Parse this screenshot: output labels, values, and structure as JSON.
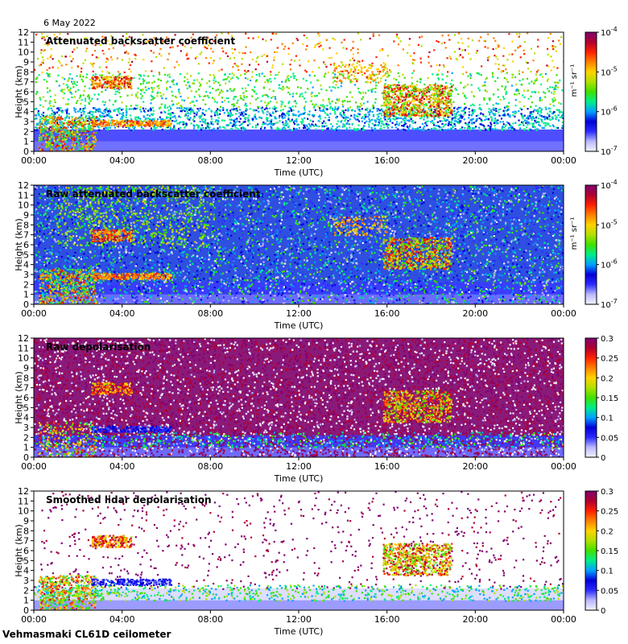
{
  "header": {
    "date": "6 May 2022"
  },
  "footer": {
    "site": "Vehmasmaki CL61D ceilometer"
  },
  "colors": {
    "colormap": [
      "#f2f2ff",
      "#b9b9ff",
      "#2b2bff",
      "#0000d9",
      "#00a0ff",
      "#00ee88",
      "#40e000",
      "#b0e000",
      "#ffd200",
      "#ff8000",
      "#ff2000",
      "#b00030",
      "#800070"
    ]
  },
  "chart_data": [
    {
      "type": "heatmap",
      "title": "Attenuated backscatter coefficient",
      "xlabel": "Time (UTC)",
      "ylabel": "Height (km)",
      "xticks": [
        "00:00",
        "04:00",
        "08:00",
        "12:00",
        "16:00",
        "20:00",
        "00:00"
      ],
      "yticks": [
        "0",
        "1",
        "2",
        "3",
        "4",
        "5",
        "6",
        "7",
        "8",
        "9",
        "10",
        "11",
        "12"
      ],
      "ylim": [
        0,
        12
      ],
      "colorbar": {
        "scale": "log",
        "ticks": [
          "10^-4",
          "10^-5",
          "10^-6",
          "10^-7"
        ],
        "unit": "m^-1 sr^-1"
      }
    },
    {
      "type": "heatmap",
      "title": "Raw attenuated backscatter coefficient",
      "xlabel": "Time (UTC)",
      "ylabel": "Height (km)",
      "xticks": [
        "00:00",
        "04:00",
        "08:00",
        "12:00",
        "16:00",
        "20:00",
        "00:00"
      ],
      "yticks": [
        "0",
        "1",
        "2",
        "3",
        "4",
        "5",
        "6",
        "7",
        "8",
        "9",
        "10",
        "11",
        "12"
      ],
      "ylim": [
        0,
        12
      ],
      "colorbar": {
        "scale": "log",
        "ticks": [
          "10^-4",
          "10^-5",
          "10^-6",
          "10^-7"
        ],
        "unit": "m^-1 sr^-1"
      }
    },
    {
      "type": "heatmap",
      "title": "Raw depolarisation",
      "xlabel": "Time (UTC)",
      "ylabel": "Height (km)",
      "xticks": [
        "00:00",
        "04:00",
        "08:00",
        "12:00",
        "16:00",
        "20:00",
        "00:00"
      ],
      "yticks": [
        "0",
        "1",
        "2",
        "3",
        "4",
        "5",
        "6",
        "7",
        "8",
        "9",
        "10",
        "11",
        "12"
      ],
      "ylim": [
        0,
        12
      ],
      "colorbar": {
        "scale": "linear",
        "ticks": [
          "0.3",
          "0.25",
          "0.2",
          "0.15",
          "0.1",
          "0.05",
          "0"
        ],
        "unit": ""
      }
    },
    {
      "type": "heatmap",
      "title": "Smoothed lidar depolarisation",
      "xlabel": "Time (UTC)",
      "ylabel": "Height (km)",
      "xticks": [
        "00:00",
        "04:00",
        "08:00",
        "12:00",
        "16:00",
        "20:00",
        "00:00"
      ],
      "yticks": [
        "0",
        "1",
        "2",
        "3",
        "4",
        "5",
        "6",
        "7",
        "8",
        "9",
        "10",
        "11",
        "12"
      ],
      "ylim": [
        0,
        12
      ],
      "colorbar": {
        "scale": "linear",
        "ticks": [
          "0.3",
          "0.25",
          "0.2",
          "0.15",
          "0.1",
          "0.05",
          "0"
        ],
        "unit": ""
      }
    }
  ]
}
